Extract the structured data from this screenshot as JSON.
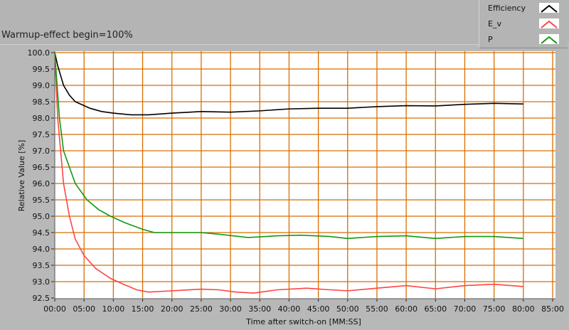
{
  "title": "Warmup-effect begin=100%",
  "legend": [
    {
      "name": "Efficiency",
      "color": "#000000"
    },
    {
      "name": "E_v",
      "color": "#ff4444"
    },
    {
      "name": "P",
      "color": "#119911"
    }
  ],
  "chart_data": {
    "type": "line",
    "xlabel": "Time after switch-on [MM:SS]",
    "ylabel": "Relative Value [%]",
    "xlim": [
      0,
      85
    ],
    "ylim": [
      92.5,
      100
    ],
    "xticks": [
      "00:00",
      "05:00",
      "10:00",
      "15:00",
      "20:00",
      "25:00",
      "30:00",
      "35:00",
      "40:00",
      "45:00",
      "50:00",
      "55:00",
      "60:00",
      "65:00",
      "70:00",
      "75:00",
      "80:00",
      "85:00"
    ],
    "yticks": [
      "92.5",
      "93.0",
      "93.5",
      "94.0",
      "94.5",
      "95.0",
      "95.5",
      "96.0",
      "96.5",
      "97.0",
      "97.5",
      "98.0",
      "98.5",
      "99.0",
      "99.5",
      "100.0"
    ],
    "grid": true,
    "grid_color": "#d86e00",
    "legend_position": "top-right",
    "series": [
      {
        "name": "Efficiency",
        "color": "#000000",
        "x": [
          0,
          0.5,
          1,
          1.5,
          2.5,
          3.5,
          5,
          6,
          8,
          10,
          13,
          16,
          20,
          25,
          30,
          35,
          40,
          45,
          50,
          55,
          60,
          65,
          70,
          75,
          80
        ],
        "y": [
          100,
          99.6,
          99.3,
          99.0,
          98.7,
          98.5,
          98.38,
          98.3,
          98.2,
          98.15,
          98.1,
          98.1,
          98.15,
          98.2,
          98.18,
          98.22,
          98.28,
          98.3,
          98.3,
          98.35,
          98.38,
          98.37,
          98.42,
          98.45,
          98.43
        ]
      },
      {
        "name": "E_v",
        "color": "#ff4444",
        "x": [
          0,
          0.5,
          1,
          1.5,
          2.5,
          3.5,
          5,
          7,
          9.5,
          12,
          14,
          16,
          20,
          25,
          28,
          31,
          34,
          38,
          43,
          47,
          50,
          55,
          60,
          65,
          70,
          75,
          80
        ],
        "y": [
          100,
          98,
          97,
          96,
          95,
          94.3,
          93.8,
          93.4,
          93.1,
          92.9,
          92.75,
          92.68,
          92.72,
          92.77,
          92.75,
          92.68,
          92.65,
          92.75,
          92.8,
          92.75,
          92.72,
          92.8,
          92.88,
          92.78,
          92.88,
          92.92,
          92.85
        ]
      },
      {
        "name": "P",
        "color": "#119911",
        "x": [
          0,
          0.8,
          1.5,
          2.5,
          3.5,
          5.5,
          7.5,
          9.5,
          12,
          15,
          17,
          20,
          25,
          28,
          33,
          38,
          42,
          47,
          50,
          55,
          60,
          65,
          70,
          75,
          80
        ],
        "y": [
          100,
          98,
          97,
          96.5,
          96,
          95.5,
          95.2,
          95.0,
          94.8,
          94.6,
          94.5,
          94.5,
          94.5,
          94.45,
          94.35,
          94.4,
          94.42,
          94.38,
          94.32,
          94.38,
          94.4,
          94.32,
          94.38,
          94.38,
          94.32
        ]
      }
    ]
  }
}
